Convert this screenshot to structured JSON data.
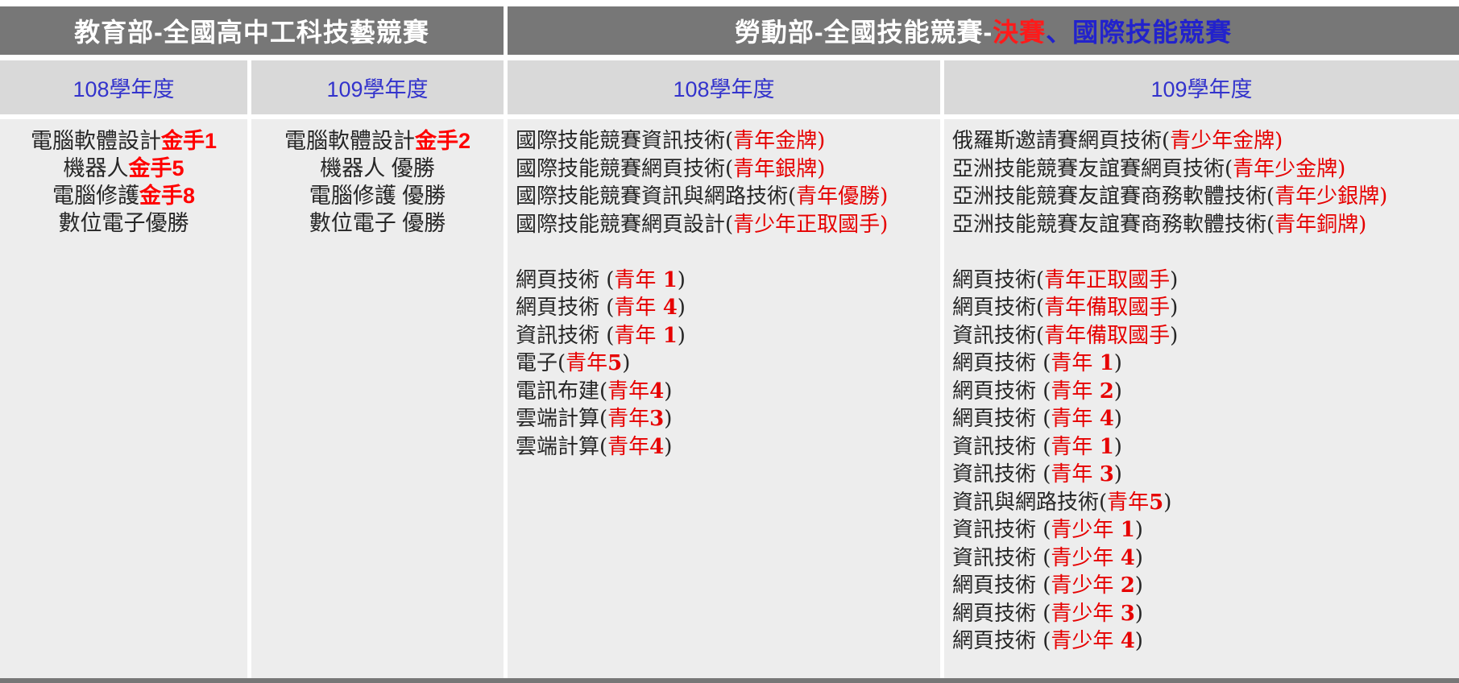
{
  "colors": {
    "header_bg": "#777777",
    "year_row_bg": "#D9D9D9",
    "body_bg": "#EDEDED",
    "blue": "#2222CC",
    "red": "#E60000",
    "red_bold": "#FF0000",
    "text": "#262626"
  },
  "header": {
    "left_segments": [
      {
        "t": "教育部-全國高中工科技藝競賽",
        "c": "white"
      }
    ],
    "right_segments": [
      {
        "t": "勞動部-全國技能競賽-",
        "c": "white"
      },
      {
        "t": "決賽",
        "c": "red"
      },
      {
        "t": "、國際技能競賽",
        "c": "blue"
      }
    ]
  },
  "year_headers": [
    "108學年度",
    "109學年度",
    "108學年度",
    "109學年度"
  ],
  "columns": {
    "moe_108": [
      [
        {
          "t": "電腦軟體設計"
        },
        {
          "t": "金手1",
          "c": "red",
          "b": true
        }
      ],
      [
        {
          "t": "機器人"
        },
        {
          "t": "金手5",
          "c": "red",
          "b": true
        }
      ],
      [
        {
          "t": "電腦修護"
        },
        {
          "t": "金手8",
          "c": "red",
          "b": true
        }
      ],
      [
        {
          "t": "數位電子優勝"
        }
      ]
    ],
    "moe_109": [
      [
        {
          "t": "電腦軟體設計"
        },
        {
          "t": "金手2",
          "c": "red",
          "b": true
        }
      ],
      [
        {
          "t": "機器人 優勝"
        }
      ],
      [
        {
          "t": "電腦修護 優勝"
        }
      ],
      [
        {
          "t": "數位電子 優勝"
        }
      ]
    ],
    "mol_108": [
      [
        {
          "t": "國際技能競賽資訊技術("
        },
        {
          "t": "青年金牌)",
          "c": "red"
        }
      ],
      [
        {
          "t": "國際技能競賽網頁技術("
        },
        {
          "t": "青年銀牌)",
          "c": "red"
        }
      ],
      [
        {
          "t": "國際技能競賽資訊與網路技術("
        },
        {
          "t": "青年優勝)",
          "c": "red"
        }
      ],
      [
        {
          "t": "國際技能競賽網頁設計("
        },
        {
          "t": "青少年正取國手)",
          "c": "red"
        }
      ],
      [],
      [
        {
          "t": "網頁技術 ("
        },
        {
          "t": "青年 ",
          "c": "red"
        },
        {
          "t": "1",
          "c": "red",
          "b": true
        },
        {
          "t": ")"
        }
      ],
      [
        {
          "t": "網頁技術 ("
        },
        {
          "t": "青年 ",
          "c": "red"
        },
        {
          "t": "4",
          "c": "red",
          "b": true
        },
        {
          "t": ")"
        }
      ],
      [
        {
          "t": "資訊技術 ("
        },
        {
          "t": "青年 ",
          "c": "red"
        },
        {
          "t": "1",
          "c": "red",
          "b": true
        },
        {
          "t": ")"
        }
      ],
      [
        {
          "t": "電子("
        },
        {
          "t": "青年",
          "c": "red"
        },
        {
          "t": "5",
          "c": "red",
          "b": true
        },
        {
          "t": ")"
        }
      ],
      [
        {
          "t": "電訊布建("
        },
        {
          "t": "青年",
          "c": "red"
        },
        {
          "t": "4",
          "c": "red",
          "b": true
        },
        {
          "t": ")"
        }
      ],
      [
        {
          "t": "雲端計算("
        },
        {
          "t": "青年",
          "c": "red"
        },
        {
          "t": "3",
          "c": "red",
          "b": true
        },
        {
          "t": ")"
        }
      ],
      [
        {
          "t": "雲端計算("
        },
        {
          "t": "青年",
          "c": "red"
        },
        {
          "t": "4",
          "c": "red",
          "b": true
        },
        {
          "t": ")"
        }
      ]
    ],
    "mol_109": [
      [
        {
          "t": "俄羅斯邀請賽網頁技術("
        },
        {
          "t": "青少年金牌)",
          "c": "red"
        }
      ],
      [
        {
          "t": "亞洲技能競賽友誼賽網頁技術("
        },
        {
          "t": "青年少金牌)",
          "c": "red"
        }
      ],
      [
        {
          "t": "亞洲技能競賽友誼賽商務軟體技術("
        },
        {
          "t": "青年少銀牌)",
          "c": "red"
        }
      ],
      [
        {
          "t": "亞洲技能競賽友誼賽商務軟體技術("
        },
        {
          "t": "青年銅牌)",
          "c": "red"
        }
      ],
      [],
      [
        {
          "t": "網頁技術("
        },
        {
          "t": "青年正取國手",
          "c": "red"
        },
        {
          "t": ")"
        }
      ],
      [
        {
          "t": "網頁技術("
        },
        {
          "t": "青年備取國手",
          "c": "red"
        },
        {
          "t": ")"
        }
      ],
      [
        {
          "t": "資訊技術("
        },
        {
          "t": "青年備取國手",
          "c": "red"
        },
        {
          "t": ")"
        }
      ],
      [
        {
          "t": "網頁技術 ("
        },
        {
          "t": "青年 ",
          "c": "red"
        },
        {
          "t": "1",
          "c": "red",
          "b": true
        },
        {
          "t": ")"
        }
      ],
      [
        {
          "t": "網頁技術 ("
        },
        {
          "t": "青年 ",
          "c": "red"
        },
        {
          "t": "2",
          "c": "red",
          "b": true
        },
        {
          "t": ")"
        }
      ],
      [
        {
          "t": "網頁技術 ("
        },
        {
          "t": "青年 ",
          "c": "red"
        },
        {
          "t": "4",
          "c": "red",
          "b": true
        },
        {
          "t": ")"
        }
      ],
      [
        {
          "t": "資訊技術 ("
        },
        {
          "t": "青年 ",
          "c": "red"
        },
        {
          "t": "1",
          "c": "red",
          "b": true
        },
        {
          "t": ")"
        }
      ],
      [
        {
          "t": "資訊技術 ("
        },
        {
          "t": "青年 ",
          "c": "red"
        },
        {
          "t": "3",
          "c": "red",
          "b": true
        },
        {
          "t": ")"
        }
      ],
      [
        {
          "t": "資訊與網路技術("
        },
        {
          "t": "青年",
          "c": "red"
        },
        {
          "t": "5",
          "c": "red",
          "b": true
        },
        {
          "t": ")"
        }
      ],
      [
        {
          "t": "資訊技術 ("
        },
        {
          "t": "青少年 ",
          "c": "red"
        },
        {
          "t": "1",
          "c": "red",
          "b": true
        },
        {
          "t": ")"
        }
      ],
      [
        {
          "t": "資訊技術 ("
        },
        {
          "t": "青少年 ",
          "c": "red"
        },
        {
          "t": "4",
          "c": "red",
          "b": true
        },
        {
          "t": ")"
        }
      ],
      [
        {
          "t": "網頁技術 ("
        },
        {
          "t": "青少年 ",
          "c": "red"
        },
        {
          "t": "2",
          "c": "red",
          "b": true
        },
        {
          "t": ")"
        }
      ],
      [
        {
          "t": "網頁技術 ("
        },
        {
          "t": "青少年 ",
          "c": "red"
        },
        {
          "t": "3",
          "c": "red",
          "b": true
        },
        {
          "t": ")"
        }
      ],
      [
        {
          "t": "網頁技術 ("
        },
        {
          "t": "青少年 ",
          "c": "red"
        },
        {
          "t": "4",
          "c": "red",
          "b": true
        },
        {
          "t": ")"
        }
      ]
    ]
  }
}
